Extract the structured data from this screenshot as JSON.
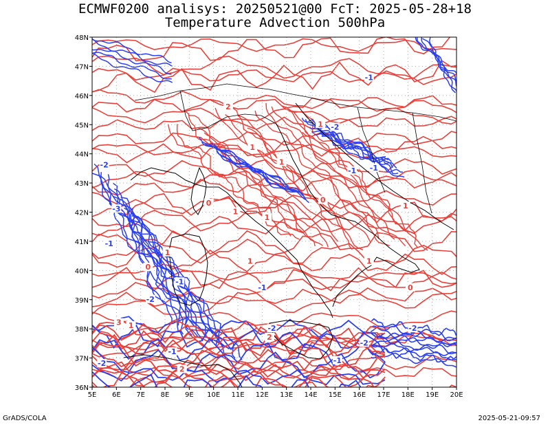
{
  "title_line1": "ECMWF0200 analisys: 20250521@00 FcT: 2025-05-28+18",
  "title_line2": "Temperature Advection 500hPa",
  "footer_left": "GrADS/COLA",
  "footer_right": "2025-05-21-09:57",
  "map": {
    "lon_range": [
      5,
      20
    ],
    "lat_range": [
      36,
      48
    ],
    "lon_ticks": [
      "5E",
      "6E",
      "7E",
      "8E",
      "9E",
      "10E",
      "11E",
      "12E",
      "13E",
      "14E",
      "15E",
      "16E",
      "17E",
      "18E",
      "19E",
      "20E"
    ],
    "lat_ticks": [
      "36N",
      "37N",
      "38N",
      "39N",
      "40N",
      "41N",
      "42N",
      "43N",
      "44N",
      "45N",
      "46N",
      "47N",
      "48N"
    ],
    "grid": "dotted",
    "colors": {
      "positive": "#e8403a",
      "negative": "#2a3ff0",
      "coast": "#000000",
      "grid": "#aaaaaa"
    },
    "contour_labels": [
      {
        "text": "1",
        "lon": 10.9,
        "lat": 42.0,
        "sign": "positive"
      },
      {
        "text": "1",
        "lon": 12.2,
        "lat": 41.8,
        "sign": "positive"
      },
      {
        "text": "2",
        "lon": 10.6,
        "lat": 45.6,
        "sign": "positive"
      },
      {
        "text": "1",
        "lon": 11.6,
        "lat": 44.2,
        "sign": "positive"
      },
      {
        "text": "1",
        "lon": 12.8,
        "lat": 43.7,
        "sign": "positive"
      },
      {
        "text": "0",
        "lon": 9.8,
        "lat": 42.3,
        "sign": "positive"
      },
      {
        "text": "1",
        "lon": 8.1,
        "lat": 40.6,
        "sign": "positive"
      },
      {
        "text": "0",
        "lon": 7.3,
        "lat": 40.1,
        "sign": "positive"
      },
      {
        "text": "-1",
        "lon": 8.6,
        "lat": 39.6,
        "sign": "negative"
      },
      {
        "text": "-2",
        "lon": 7.4,
        "lat": 39.0,
        "sign": "negative"
      },
      {
        "text": "-3",
        "lon": 6.0,
        "lat": 42.1,
        "sign": "negative"
      },
      {
        "text": "-1",
        "lon": 5.7,
        "lat": 40.9,
        "sign": "negative"
      },
      {
        "text": "-2",
        "lon": 5.5,
        "lat": 43.6,
        "sign": "negative"
      },
      {
        "text": "-1",
        "lon": 16.4,
        "lat": 46.6,
        "sign": "negative"
      },
      {
        "text": "-2",
        "lon": 15.0,
        "lat": 44.9,
        "sign": "negative"
      },
      {
        "text": "1",
        "lon": 14.4,
        "lat": 45.0,
        "sign": "positive"
      },
      {
        "text": "-1",
        "lon": 15.7,
        "lat": 43.4,
        "sign": "negative"
      },
      {
        "text": "0",
        "lon": 14.5,
        "lat": 42.4,
        "sign": "positive"
      },
      {
        "text": "-1",
        "lon": 16.6,
        "lat": 43.5,
        "sign": "negative"
      },
      {
        "text": "1",
        "lon": 16.4,
        "lat": 40.3,
        "sign": "positive"
      },
      {
        "text": "0",
        "lon": 18.1,
        "lat": 39.4,
        "sign": "positive"
      },
      {
        "text": "-2",
        "lon": 16.2,
        "lat": 37.5,
        "sign": "negative"
      },
      {
        "text": "-1",
        "lon": 15.1,
        "lat": 36.9,
        "sign": "negative"
      },
      {
        "text": "2",
        "lon": 12.3,
        "lat": 37.7,
        "sign": "positive"
      },
      {
        "text": "-2",
        "lon": 12.4,
        "lat": 38.0,
        "sign": "negative"
      },
      {
        "text": "1",
        "lon": 6.6,
        "lat": 38.1,
        "sign": "positive"
      },
      {
        "text": "3",
        "lon": 6.1,
        "lat": 38.2,
        "sign": "positive"
      },
      {
        "text": "-1",
        "lon": 8.3,
        "lat": 37.2,
        "sign": "negative"
      },
      {
        "text": "-2",
        "lon": 5.4,
        "lat": 36.8,
        "sign": "negative"
      },
      {
        "text": "2",
        "lon": 8.7,
        "lat": 36.6,
        "sign": "positive"
      },
      {
        "text": "-1",
        "lon": 12.0,
        "lat": 39.4,
        "sign": "negative"
      },
      {
        "text": "1",
        "lon": 17.9,
        "lat": 42.2,
        "sign": "positive"
      },
      {
        "text": "-2",
        "lon": 18.2,
        "lat": 38.0,
        "sign": "negative"
      },
      {
        "text": "1",
        "lon": 11.5,
        "lat": 40.3,
        "sign": "positive"
      }
    ]
  }
}
